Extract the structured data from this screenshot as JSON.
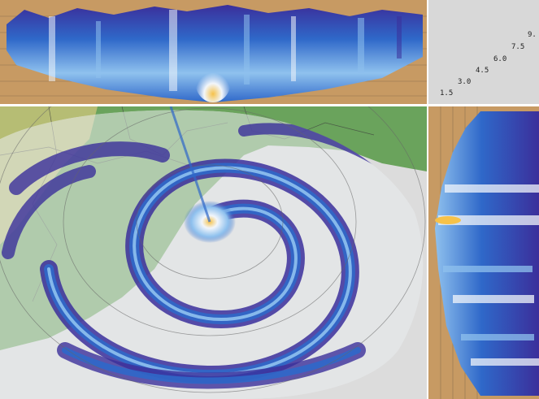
{
  "image": {
    "description_items": [
      "vertical-cross-section-top",
      "vertical-cross-section-side",
      "ppi-radar-map"
    ],
    "colors": {
      "background_tan": "#c79a63",
      "reflectivity_dark": "#3b2f9b",
      "reflectivity_mid": "#2f68c9",
      "reflectivity_light": "#8fc1ee",
      "reflectivity_white": "#f2f6fb",
      "reflectivity_core": "#f6c24a",
      "land_green": "#6aa35c",
      "land_yellow": "#c9c37a",
      "water_gray": "#dcdcdc"
    }
  },
  "height_key": {
    "labels": [
      "1.5",
      "3.0",
      "4.5",
      "6.0",
      "7.5",
      "9."
    ]
  }
}
